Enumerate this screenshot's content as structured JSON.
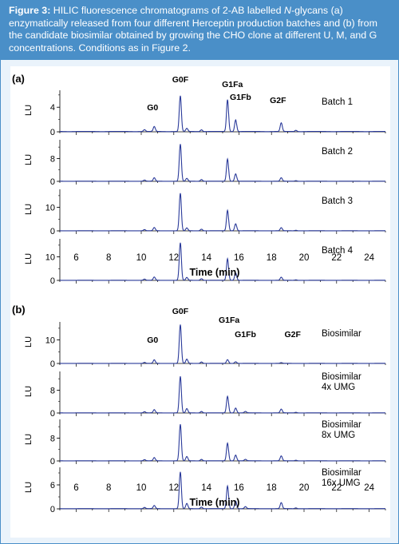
{
  "figure_caption": {
    "label": "Figure 3:",
    "text_part1": " HILIC fluorescence chromatograms of 2-AB labelled ",
    "italic": "N",
    "text_part2": "-glycans (a) enzymatically released from four different Herceptin production batches and (b) from the candidate biosimilar obtained by growing the CHO clone at different U, M, and G concentrations. Conditions as in Figure 2."
  },
  "colors": {
    "trace": "#2a3a9a",
    "caption_bg": "#4a8fc8",
    "frame_bg": "#eaf3fb"
  },
  "chart_data": [
    {
      "type": "line",
      "panel_label": "(a)",
      "xlabel": "Time (min)",
      "xlim": [
        5,
        25
      ],
      "xticks": [
        6,
        8,
        10,
        12,
        14,
        16,
        18,
        20,
        22,
        24
      ],
      "ylabel": "LU",
      "peak_labels": [
        {
          "name": "G0",
          "x": 10.7
        },
        {
          "name": "G0F",
          "x": 12.4
        },
        {
          "name": "G1Fa",
          "x": 15.3
        },
        {
          "name": "G1Fb",
          "x": 15.8
        },
        {
          "name": "G2F",
          "x": 18.6
        }
      ],
      "series": [
        {
          "name": "Batch 1",
          "ylim": [
            0,
            6.5
          ],
          "yticks": [
            0,
            4
          ],
          "peaks": [
            [
              10.2,
              0.3
            ],
            [
              10.8,
              0.8
            ],
            [
              12.4,
              5.8
            ],
            [
              12.8,
              0.5
            ],
            [
              13.7,
              0.3
            ],
            [
              15.3,
              5.2
            ],
            [
              15.8,
              1.9
            ],
            [
              18.6,
              1.4
            ],
            [
              19.5,
              0.2
            ]
          ]
        },
        {
          "name": "Batch 2",
          "ylim": [
            0,
            14
          ],
          "yticks": [
            0,
            8
          ],
          "peaks": [
            [
              10.2,
              0.4
            ],
            [
              10.8,
              1.2
            ],
            [
              12.4,
              13.0
            ],
            [
              12.8,
              1.0
            ],
            [
              13.7,
              0.6
            ],
            [
              15.3,
              7.8
            ],
            [
              15.8,
              2.6
            ],
            [
              18.6,
              1.2
            ],
            [
              19.5,
              0.2
            ]
          ]
        },
        {
          "name": "Batch 3",
          "ylim": [
            0,
            17
          ],
          "yticks": [
            0,
            10
          ],
          "peaks": [
            [
              10.2,
              0.5
            ],
            [
              10.8,
              1.4
            ],
            [
              12.4,
              16.0
            ],
            [
              12.8,
              1.2
            ],
            [
              13.7,
              0.7
            ],
            [
              15.3,
              8.7
            ],
            [
              15.8,
              3.0
            ],
            [
              18.6,
              1.3
            ],
            [
              19.5,
              0.2
            ]
          ]
        },
        {
          "name": "Batch 4",
          "ylim": [
            0,
            17
          ],
          "yticks": [
            0,
            10
          ],
          "peaks": [
            [
              10.2,
              0.5
            ],
            [
              10.8,
              1.4
            ],
            [
              12.4,
              16.0
            ],
            [
              12.8,
              1.2
            ],
            [
              13.7,
              0.7
            ],
            [
              15.3,
              9.2
            ],
            [
              15.8,
              3.1
            ],
            [
              18.6,
              1.3
            ],
            [
              19.5,
              0.2
            ]
          ]
        }
      ]
    },
    {
      "type": "line",
      "panel_label": "(b)",
      "xlabel": "Time (min)",
      "xlim": [
        5,
        25
      ],
      "xticks": [
        6,
        8,
        10,
        12,
        14,
        16,
        18,
        20,
        22,
        24
      ],
      "ylabel": "LU",
      "peak_labels": [
        {
          "name": "G0",
          "x": 10.7
        },
        {
          "name": "G0F",
          "x": 12.4
        },
        {
          "name": "G1Fa",
          "x": 15.3
        },
        {
          "name": "G1Fb",
          "x": 16.1
        },
        {
          "name": "G2F",
          "x": 18.6
        }
      ],
      "series": [
        {
          "name": "Biosimilar",
          "ylim": [
            0,
            17
          ],
          "yticks": [
            0,
            10
          ],
          "peaks": [
            [
              10.2,
              0.4
            ],
            [
              10.8,
              1.5
            ],
            [
              12.4,
              16.5
            ],
            [
              12.8,
              1.8
            ],
            [
              13.7,
              0.6
            ],
            [
              15.3,
              1.6
            ],
            [
              15.8,
              0.7
            ],
            [
              18.6,
              0.3
            ]
          ]
        },
        {
          "name": "Biosimilar\n4x UMG",
          "ylim": [
            0,
            14
          ],
          "yticks": [
            0,
            8
          ],
          "peaks": [
            [
              10.2,
              0.4
            ],
            [
              10.8,
              1.1
            ],
            [
              12.4,
              12.8
            ],
            [
              12.8,
              1.5
            ],
            [
              13.7,
              0.5
            ],
            [
              15.3,
              5.8
            ],
            [
              15.8,
              1.7
            ],
            [
              16.4,
              0.5
            ],
            [
              18.6,
              1.3
            ],
            [
              19.5,
              0.2
            ]
          ]
        },
        {
          "name": "Biosimilar\n8x UMG",
          "ylim": [
            0,
            14
          ],
          "yticks": [
            0,
            8
          ],
          "peaks": [
            [
              10.2,
              0.4
            ],
            [
              10.8,
              1.1
            ],
            [
              12.4,
              12.8
            ],
            [
              12.8,
              1.5
            ],
            [
              13.7,
              0.5
            ],
            [
              15.3,
              6.2
            ],
            [
              15.8,
              2.0
            ],
            [
              16.4,
              0.5
            ],
            [
              18.6,
              1.7
            ],
            [
              19.5,
              0.2
            ]
          ]
        },
        {
          "name": "Biosimilar\n16x UMG",
          "ylim": [
            0,
            10
          ],
          "yticks": [
            0,
            6
          ],
          "peaks": [
            [
              10.2,
              0.3
            ],
            [
              10.8,
              0.8
            ],
            [
              12.4,
              9.2
            ],
            [
              12.8,
              1.3
            ],
            [
              13.7,
              0.4
            ],
            [
              15.3,
              5.7
            ],
            [
              15.8,
              1.9
            ],
            [
              16.4,
              0.5
            ],
            [
              18.6,
              1.5
            ],
            [
              19.5,
              0.2
            ]
          ]
        }
      ]
    }
  ]
}
